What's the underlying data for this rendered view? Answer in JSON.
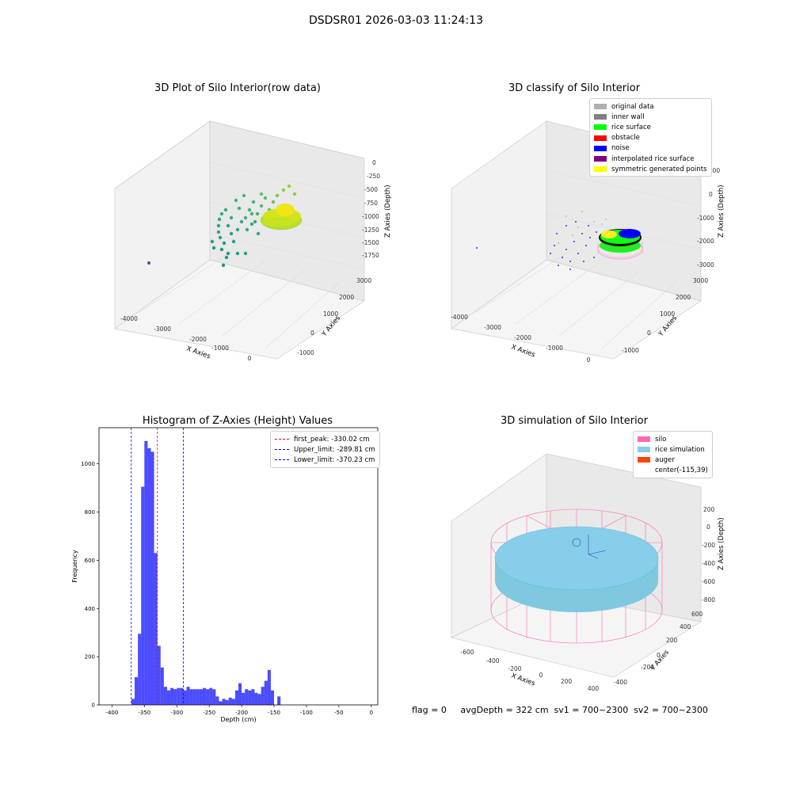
{
  "figure": {
    "title": "DSDSR01 2026-03-03 11:24:13"
  },
  "panels": {
    "raw": {
      "title": "3D Plot of Silo Interior(row data)",
      "xlabel": "X Axies",
      "ylabel": "Y Axies",
      "zlabel": "Z Axies (Depth)",
      "xticks": [
        "-4000",
        "-3000",
        "-2000",
        "-1000",
        "0"
      ],
      "yticks": [
        "-1000",
        "0",
        "1000",
        "2000",
        "3000"
      ],
      "zticks": [
        "0",
        "-250",
        "-500",
        "-750",
        "-1000",
        "-1250",
        "-1500",
        "-1750"
      ]
    },
    "classify": {
      "title": "3D classify of Silo Interior",
      "xlabel": "X Axies",
      "ylabel": "Y Axies",
      "zlabel": "Z Axies (Depth)",
      "xticks": [
        "-4000",
        "-3000",
        "-2000",
        "-1000",
        "0"
      ],
      "yticks": [
        "-1000",
        "0",
        "1000",
        "2000",
        "3000"
      ],
      "zticks": [
        "1000",
        "0",
        "-1000",
        "-2000",
        "-3000"
      ],
      "legend": [
        {
          "label": "original data",
          "color": "#b0b0b0"
        },
        {
          "label": "inner wall",
          "color": "#808080"
        },
        {
          "label": "rice surface",
          "color": "#00ff00"
        },
        {
          "label": "obstacle",
          "color": "#ff0000"
        },
        {
          "label": "noise",
          "color": "#0000ff"
        },
        {
          "label": "interpolated rice surface",
          "color": "#800080"
        },
        {
          "label": "symmetric generated points",
          "color": "#ffff00"
        }
      ]
    },
    "simulation": {
      "title": "3D simulation of Silo Interior",
      "xlabel": "X Axies",
      "ylabel": "Y Axies",
      "zlabel": "Z Axies (Depth)",
      "xticks": [
        "-600",
        "-400",
        "-200",
        "0",
        "200",
        "400"
      ],
      "yticks": [
        "-400",
        "-200",
        "0",
        "200",
        "400",
        "600"
      ],
      "zticks": [
        "200",
        "0",
        "-200",
        "-400",
        "-600",
        "-800"
      ],
      "legend": [
        {
          "label": "silo",
          "color": "#ff69b4"
        },
        {
          "label": "rice simulation",
          "color": "#87ceeb"
        },
        {
          "label": "auger",
          "color": "#ff4500"
        },
        {
          "label": "center(-115,39)",
          "color": "#ffffff"
        }
      ]
    }
  },
  "chart_data": {
    "type": "bar",
    "title": "Histogram of Z-Axies (Height) Values",
    "xlabel": "Depth (cm)",
    "ylabel": "Frequency",
    "xlim": [
      -420,
      10
    ],
    "ylim": [
      0,
      1150
    ],
    "bin_width": 5,
    "bin_start": -370,
    "values": [
      25,
      115,
      295,
      905,
      1095,
      1065,
      1050,
      630,
      245,
      155,
      75,
      60,
      70,
      65,
      70,
      70,
      60,
      75,
      65,
      65,
      65,
      65,
      70,
      65,
      70,
      65,
      35,
      15,
      25,
      20,
      30,
      25,
      60,
      90,
      50,
      65,
      60,
      65,
      50,
      45,
      75,
      100,
      145,
      60,
      0,
      35
    ],
    "xticks": [
      "-400",
      "-350",
      "-300",
      "-250",
      "-200",
      "-150",
      "-100",
      "-50",
      "0"
    ],
    "yticks": [
      "0",
      "200",
      "400",
      "600",
      "800",
      "1000"
    ],
    "color": "#0000ff",
    "lines": [
      {
        "label": "first_peak: -330.02 cm",
        "x": -330.02,
        "color": "#ff0000"
      },
      {
        "label": "Upper_limit: -289.81 cm",
        "x": -289.81,
        "color": "#0000ff"
      },
      {
        "label": "Lower_limit: -370.23 cm",
        "x": -370.23,
        "color": "#0000ff"
      }
    ],
    "legend_position": "top-right"
  },
  "status": {
    "text": "flag = 0     avgDepth = 322 cm  sv1 = 700~2300  sv2 = 700~2300"
  }
}
